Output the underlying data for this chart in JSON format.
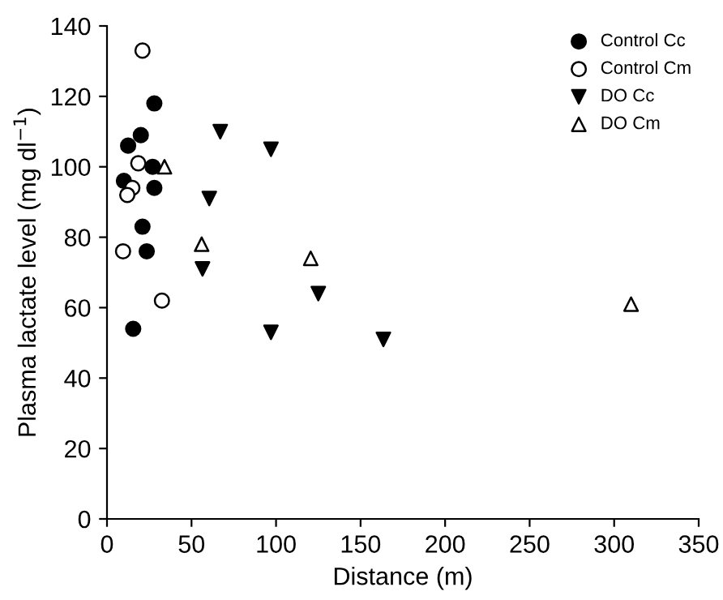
{
  "chart_data": {
    "type": "scatter",
    "xlabel": "Distance (m)",
    "ylabel": "Plasma lactate level (mg dl$^{−1}$)",
    "xlim": [
      0,
      350
    ],
    "xticks": [
      0,
      50,
      100,
      150,
      200,
      250,
      300,
      350
    ],
    "ylim": [
      0,
      140
    ],
    "yticks": [
      0,
      20,
      40,
      60,
      80,
      100,
      120,
      140
    ],
    "grid": false,
    "legend": "top right",
    "series": [
      {
        "name": "Control Cc",
        "color": "#000000",
        "marker": "circle",
        "x": [
          28,
          20,
          12.5,
          27,
          10,
          28,
          21,
          23.5,
          15.5
        ],
        "values": [
          118,
          109,
          106,
          100,
          96,
          94,
          83,
          76,
          54
        ]
      },
      {
        "name": "Control Cm",
        "color": "#ffffff",
        "marker": "circle",
        "x": [
          21,
          18.5,
          15,
          12,
          9.5,
          32.5
        ],
        "values": [
          133,
          101,
          94,
          92,
          76,
          62
        ]
      },
      {
        "name": "DO Cc",
        "color": "#000000",
        "marker": "triangle_down",
        "x": [
          67,
          97,
          60.5,
          56.5,
          97,
          125,
          163.5
        ],
        "values": [
          110,
          105,
          91,
          71,
          53,
          64,
          51
        ]
      },
      {
        "name": "DO Cm",
        "color": "#ffffff",
        "marker": "triangle",
        "x": [
          34,
          56,
          120.5,
          310
        ],
        "values": [
          100,
          78,
          74,
          61
        ]
      }
    ]
  }
}
